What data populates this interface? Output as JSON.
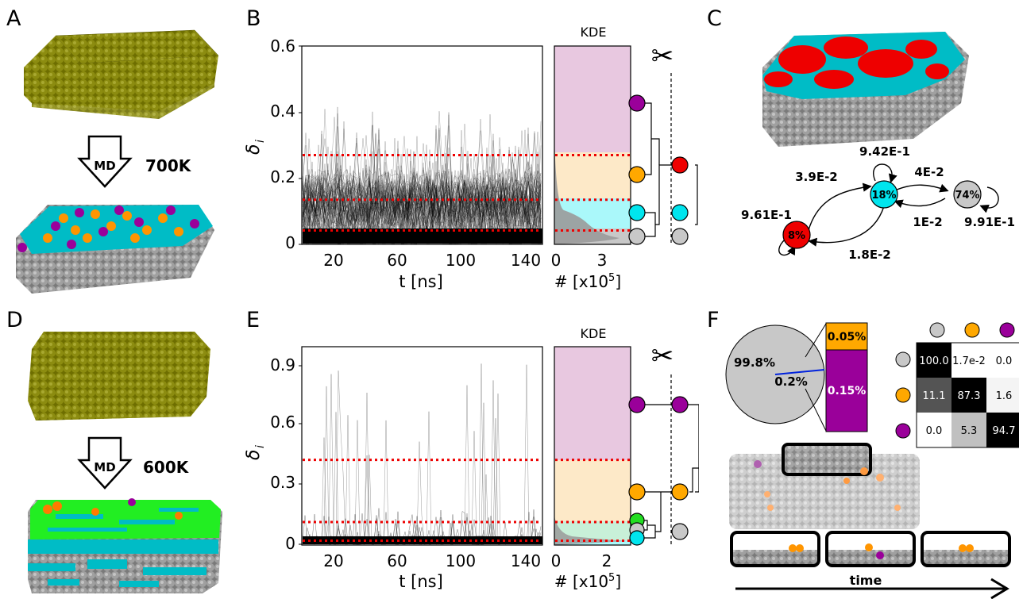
{
  "panels": {
    "A": {
      "label": "A",
      "md": "MD",
      "temp": "700K"
    },
    "B": {
      "label": "B",
      "kde": "KDE",
      "ylabel_main": "δ",
      "ylabel_sub": "i",
      "yticks": [
        "0",
        "0.2",
        "0.4",
        "0.6"
      ],
      "xticks": [
        "20",
        "60",
        "100",
        "140"
      ],
      "xlabel": "t [ns]",
      "kde_xticks": [
        "0",
        "3"
      ],
      "kde_xlabel_prefix": "# [x10",
      "kde_xlabel_exp": "5",
      "kde_xlabel_suffix": "]",
      "thresholds": [
        0.042,
        0.135,
        0.27
      ]
    },
    "C": {
      "label": "C",
      "nodes": [
        {
          "id": "red",
          "pct": "8%",
          "color": "#ee0000"
        },
        {
          "id": "cyan",
          "pct": "18%",
          "color": "#00e5ee"
        },
        {
          "id": "gray",
          "pct": "74%",
          "color": "#c8c8c8"
        }
      ],
      "rates": {
        "cyan_self": "9.42E-1",
        "red_to_cyan": "3.9E-2",
        "cyan_to_gray": "4E-2",
        "gray_to_cyan": "1E-2",
        "red_self": "9.61E-1",
        "gray_self": "9.91E-1",
        "cyan_to_red": "1.8E-2"
      }
    },
    "D": {
      "label": "D",
      "md": "MD",
      "temp": "600K"
    },
    "E": {
      "label": "E",
      "kde": "KDE",
      "ylabel_main": "δ",
      "ylabel_sub": "i",
      "yticks": [
        "0",
        "0.3",
        "0.6",
        "0.9"
      ],
      "xticks": [
        "20",
        "60",
        "100",
        "140"
      ],
      "xlabel": "t [ns]",
      "kde_xticks": [
        "0",
        "2"
      ],
      "kde_xlabel_prefix": "# [x10",
      "kde_xlabel_exp": "5",
      "kde_xlabel_suffix": "]",
      "thresholds": [
        0.022,
        0.115,
        0.425
      ]
    },
    "F": {
      "label": "F",
      "pie": {
        "big": "99.8%",
        "small": "0.2%"
      },
      "bar": {
        "top": "0.05%",
        "bottom": "0.15%"
      },
      "matrix": [
        [
          "100.0",
          "1.7e-2",
          "0.0"
        ],
        [
          "11.1",
          "87.3",
          "1.6"
        ],
        [
          "0.0",
          "5.3",
          "94.7"
        ]
      ],
      "time_label": "time"
    }
  },
  "colors": {
    "gold": "#808000",
    "gray": "#a8a8a8",
    "cyan": "#00c8d0",
    "orange": "#ff9500",
    "purple": "#9a009a",
    "green": "#22ee22",
    "red": "#ee0000",
    "pink": "#e8c8e0",
    "cream": "#fde9c8",
    "lightcyan": "#aaf8fa",
    "mint": "#c8f0d8"
  }
}
